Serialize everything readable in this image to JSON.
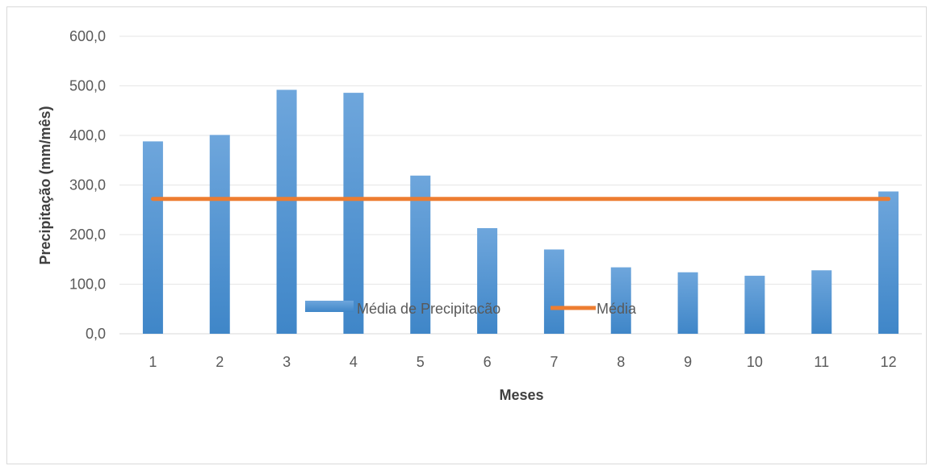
{
  "chart_data": {
    "type": "bar",
    "title": "",
    "xlabel": "Meses",
    "ylabel": "Precipitação (mm/mês)",
    "categories": [
      "1",
      "2",
      "3",
      "4",
      "5",
      "6",
      "7",
      "8",
      "9",
      "10",
      "11",
      "12"
    ],
    "ylim": [
      0,
      600
    ],
    "yticks": [
      "0,0",
      "100,0",
      "200,0",
      "300,0",
      "400,0",
      "500,0",
      "600,0"
    ],
    "series": [
      {
        "name": "Média de Precipitacão",
        "type": "bar",
        "color": "#5b9bd5",
        "values": [
          388,
          401,
          492,
          486,
          319,
          213,
          170,
          134,
          124,
          117,
          128,
          287
        ]
      },
      {
        "name": "Média",
        "type": "line",
        "color": "#ed7d31",
        "values": [
          272,
          272,
          272,
          272,
          272,
          272,
          272,
          272,
          272,
          272,
          272,
          272
        ]
      }
    ],
    "grid": true,
    "legend_position": "bottom"
  }
}
